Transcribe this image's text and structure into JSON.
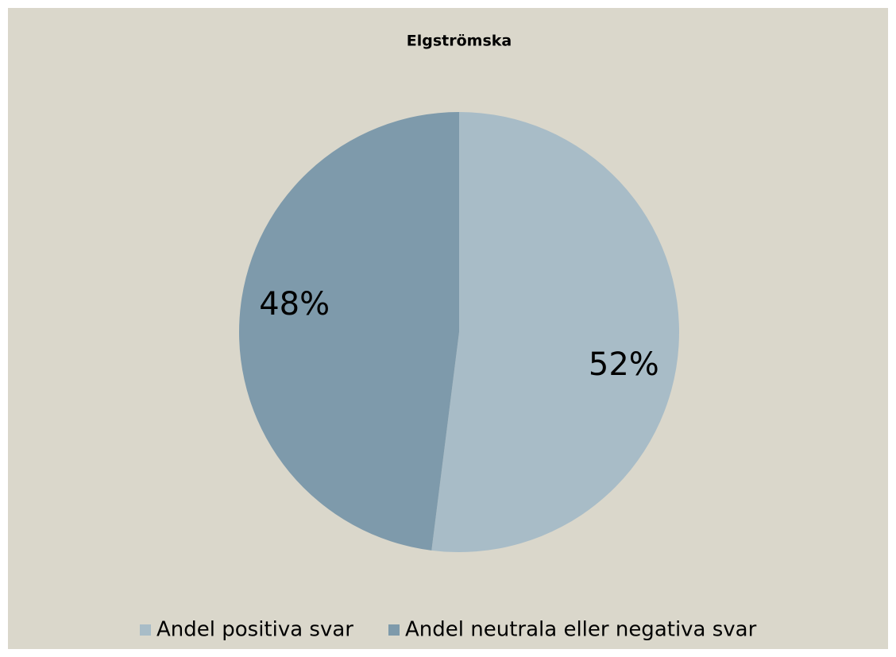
{
  "chart_data": {
    "type": "pie",
    "title": "Elgströmska",
    "categories": [
      "Andel positiva svar",
      "Andel neutrala eller negativa svar"
    ],
    "values": [
      52,
      48
    ],
    "value_labels": [
      "52%",
      "48%"
    ],
    "colors": [
      "#a8bcc7",
      "#7e9aab"
    ],
    "legend": "bottom"
  }
}
